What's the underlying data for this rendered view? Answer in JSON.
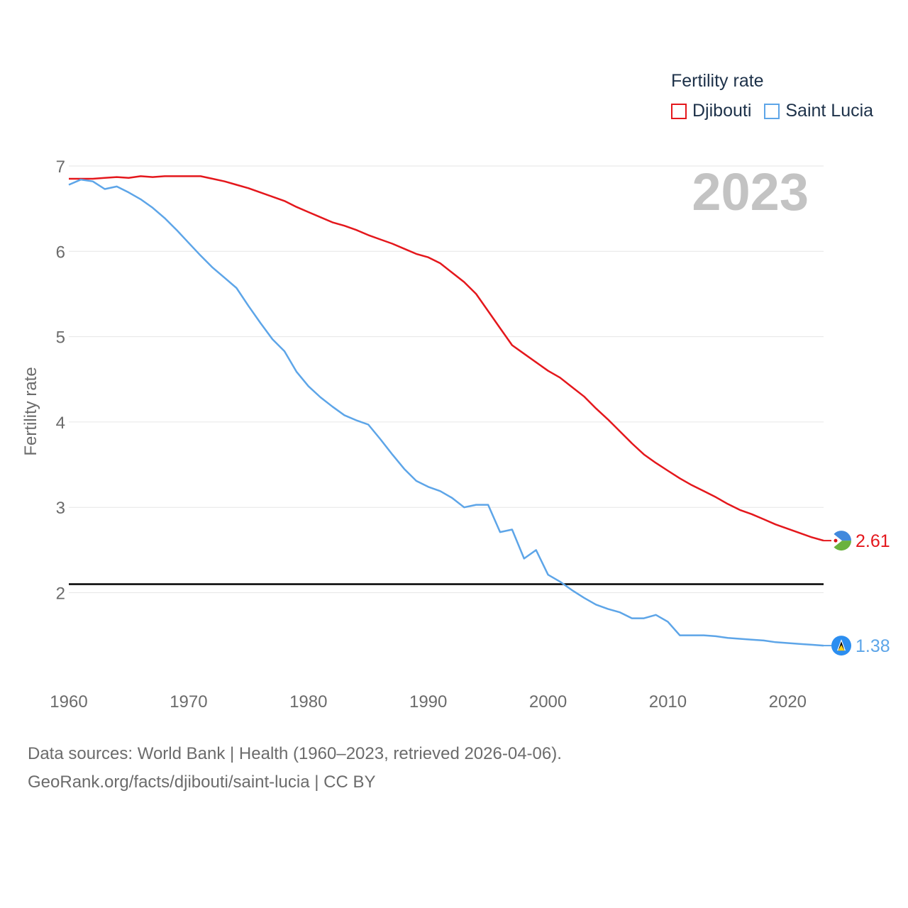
{
  "chart_data": {
    "type": "line",
    "title": "Fertility rate",
    "ylabel": "Fertility rate",
    "xlabel": "",
    "year_label": "2023",
    "xlim": [
      1960,
      2023
    ],
    "ylim": [
      1.0,
      7.0
    ],
    "x_ticks": [
      "1960",
      "1970",
      "1980",
      "1990",
      "2000",
      "2010",
      "2020"
    ],
    "y_ticks": [
      "2",
      "3",
      "4",
      "5",
      "6",
      "7"
    ],
    "reference_line": 2.1,
    "x": [
      1960,
      1961,
      1962,
      1963,
      1964,
      1965,
      1966,
      1967,
      1968,
      1969,
      1970,
      1971,
      1972,
      1973,
      1974,
      1975,
      1976,
      1977,
      1978,
      1979,
      1980,
      1981,
      1982,
      1983,
      1984,
      1985,
      1986,
      1987,
      1988,
      1989,
      1990,
      1991,
      1992,
      1993,
      1994,
      1995,
      1996,
      1997,
      1998,
      1999,
      2000,
      2001,
      2002,
      2003,
      2004,
      2005,
      2006,
      2007,
      2008,
      2009,
      2010,
      2011,
      2012,
      2013,
      2014,
      2015,
      2016,
      2017,
      2018,
      2019,
      2020,
      2021,
      2022,
      2023
    ],
    "series": [
      {
        "name": "Djibouti",
        "color": "#e4171c",
        "end_label": "2.61",
        "values": [
          6.85,
          6.85,
          6.85,
          6.86,
          6.87,
          6.86,
          6.88,
          6.87,
          6.88,
          6.88,
          6.88,
          6.88,
          6.85,
          6.82,
          6.78,
          6.74,
          6.69,
          6.64,
          6.59,
          6.52,
          6.46,
          6.4,
          6.34,
          6.3,
          6.25,
          6.19,
          6.14,
          6.09,
          6.03,
          5.97,
          5.93,
          5.86,
          5.75,
          5.64,
          5.5,
          5.3,
          5.1,
          4.9,
          4.8,
          4.7,
          4.6,
          4.52,
          4.41,
          4.3,
          4.16,
          4.03,
          3.89,
          3.75,
          3.62,
          3.52,
          3.43,
          3.34,
          3.26,
          3.19,
          3.12,
          3.04,
          2.97,
          2.92,
          2.86,
          2.8,
          2.75,
          2.7,
          2.65,
          2.61
        ]
      },
      {
        "name": "Saint Lucia",
        "color": "#5da5e8",
        "end_label": "1.38",
        "values": [
          6.78,
          6.84,
          6.82,
          6.73,
          6.76,
          6.69,
          6.61,
          6.51,
          6.39,
          6.25,
          6.1,
          5.95,
          5.81,
          5.69,
          5.57,
          5.36,
          5.16,
          4.97,
          4.83,
          4.59,
          4.42,
          4.29,
          4.18,
          4.08,
          4.02,
          3.97,
          3.8,
          3.62,
          3.45,
          3.31,
          3.24,
          3.19,
          3.11,
          3.0,
          3.03,
          3.03,
          2.71,
          2.74,
          2.4,
          2.5,
          2.21,
          2.13,
          2.03,
          1.94,
          1.86,
          1.81,
          1.77,
          1.7,
          1.7,
          1.74,
          1.66,
          1.5,
          1.5,
          1.5,
          1.49,
          1.47,
          1.46,
          1.45,
          1.44,
          1.42,
          1.41,
          1.4,
          1.39,
          1.38
        ]
      }
    ]
  },
  "footer": {
    "line1": "Data sources: World Bank | Health (1960–2023, retrieved 2026-04-06).",
    "line2": "GeoRank.org/facts/djibouti/saint-lucia | CC BY"
  }
}
